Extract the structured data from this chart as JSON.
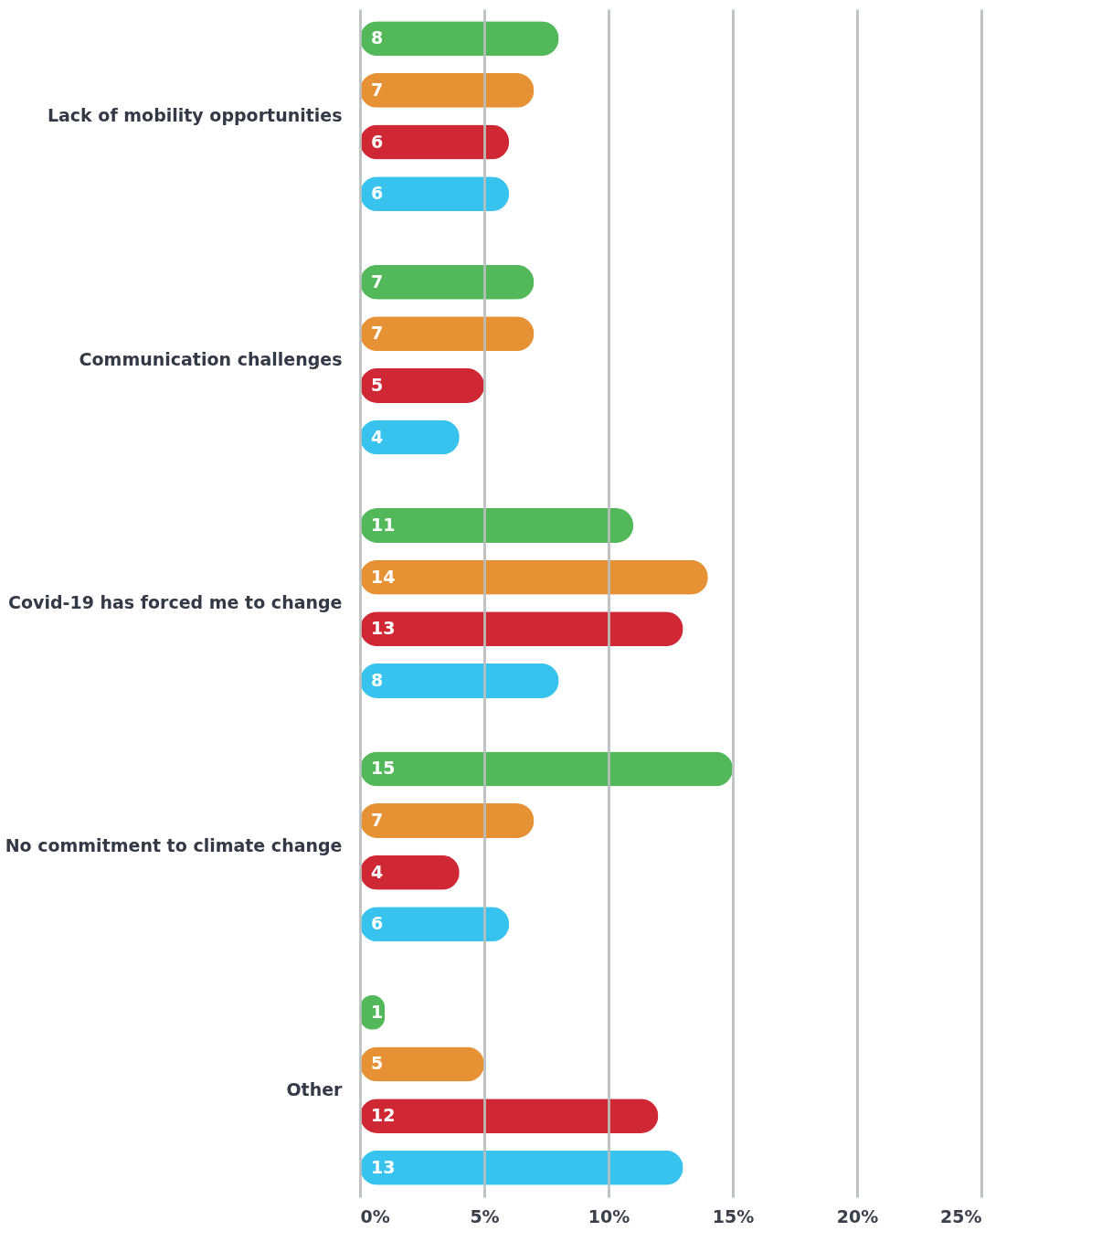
{
  "chart_data": {
    "type": "bar",
    "orientation": "horizontal",
    "categories": [
      "Lack of mobility opportunities",
      "Communication challenges",
      "Covid-19 has forced me to change",
      "No commitment to climate change",
      "Other"
    ],
    "series": [
      {
        "color": "#52b85a",
        "values": [
          8,
          7,
          11,
          15,
          1
        ]
      },
      {
        "color": "#e59134",
        "values": [
          7,
          7,
          14,
          7,
          5
        ]
      },
      {
        "color": "#cf2834",
        "values": [
          6,
          5,
          13,
          4,
          12
        ]
      },
      {
        "color": "#38c3ee",
        "values": [
          6,
          4,
          8,
          6,
          13
        ]
      }
    ],
    "xlim": [
      0,
      25
    ],
    "xticks": [
      {
        "value": 0,
        "label": "0%"
      },
      {
        "value": 5,
        "label": "5%"
      },
      {
        "value": 10,
        "label": "10%"
      },
      {
        "value": 15,
        "label": "15%"
      },
      {
        "value": 20,
        "label": "20%"
      },
      {
        "value": 25,
        "label": "25%"
      }
    ],
    "grid": "x",
    "data_labels": true
  }
}
